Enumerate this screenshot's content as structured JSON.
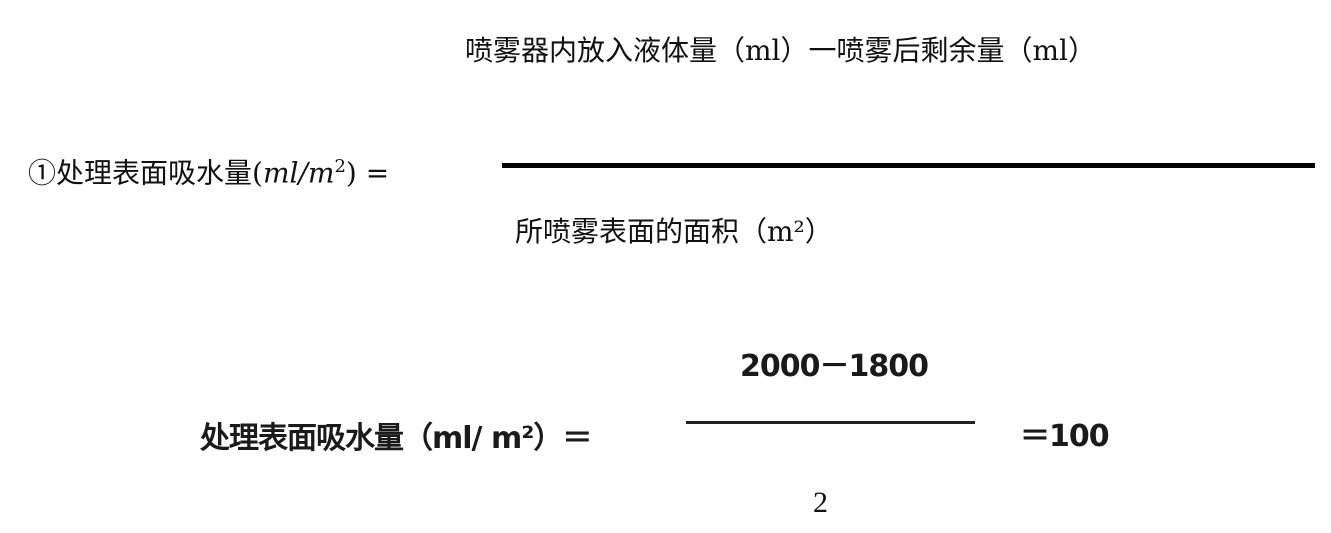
{
  "formula1": {
    "label": "①处理表面吸水量",
    "unit_open": "(",
    "unit_m": "ml/m",
    "unit_sup": "2",
    "unit_close": ") =",
    "numerator": "喷雾器内放入液体量（ml）一喷雾后剩余量（ml）",
    "denominator": "所喷雾表面的面积（m²）"
  },
  "formula2": {
    "label": "处理表面吸水量（ml/ m²）＝",
    "numerator": "2000－1800",
    "denominator": "2",
    "result": "＝100"
  }
}
